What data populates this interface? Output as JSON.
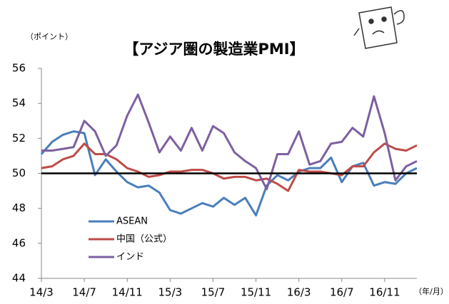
{
  "chart_data": {
    "type": "line",
    "title": "【アジア圏の製造業PMI】",
    "y_unit": "（ポイント）",
    "x_unit": "（年/月）",
    "categories": [
      "14/3",
      null,
      null,
      null,
      "14/7",
      null,
      null,
      null,
      "14/11",
      null,
      null,
      null,
      "15/3",
      null,
      null,
      null,
      "15/7",
      null,
      null,
      null,
      "15/11",
      null,
      null,
      null,
      "16/3",
      null,
      null,
      null,
      "16/7",
      null,
      null,
      null,
      "16/11",
      null,
      null,
      null
    ],
    "series": [
      {
        "name": "ASEAN",
        "color": "#4a7ebb",
        "values": [
          51.1,
          51.8,
          52.2,
          52.4,
          52.3,
          49.9,
          50.8,
          50.1,
          49.5,
          49.2,
          49.3,
          48.9,
          47.9,
          47.7,
          48.0,
          48.3,
          48.1,
          48.6,
          48.2,
          48.6,
          47.6,
          49.3,
          49.9,
          49.6,
          50.1,
          50.3,
          50.3,
          50.9,
          49.5,
          50.4,
          50.6,
          49.3,
          49.5,
          49.4,
          50.0,
          50.3
        ]
      },
      {
        "name": "中国（公式）",
        "color": "#be4b48",
        "values": [
          50.3,
          50.4,
          50.8,
          51.0,
          51.7,
          51.1,
          51.1,
          50.8,
          50.3,
          50.1,
          49.8,
          49.9,
          50.1,
          50.1,
          50.2,
          50.2,
          50.0,
          49.7,
          49.8,
          49.8,
          49.6,
          49.7,
          49.4,
          49.0,
          50.2,
          50.1,
          50.1,
          50.0,
          49.9,
          50.4,
          50.4,
          51.2,
          51.7,
          51.4,
          51.3,
          51.6
        ]
      },
      {
        "name": "インド",
        "color": "#7d60a0",
        "values": [
          51.3,
          51.3,
          51.4,
          51.5,
          53.0,
          52.4,
          51.0,
          51.6,
          53.3,
          54.5,
          52.9,
          51.2,
          52.1,
          51.3,
          52.6,
          51.3,
          52.7,
          52.3,
          51.2,
          50.7,
          50.3,
          49.1,
          51.1,
          51.1,
          52.4,
          50.5,
          50.7,
          51.7,
          51.8,
          52.6,
          52.1,
          54.4,
          52.3,
          49.6,
          50.4,
          50.7
        ]
      }
    ],
    "ylim": [
      44,
      56
    ],
    "yticks": [
      44,
      46,
      48,
      50,
      52,
      54,
      56
    ],
    "reference_line": 50,
    "reference_color": "#000000"
  }
}
